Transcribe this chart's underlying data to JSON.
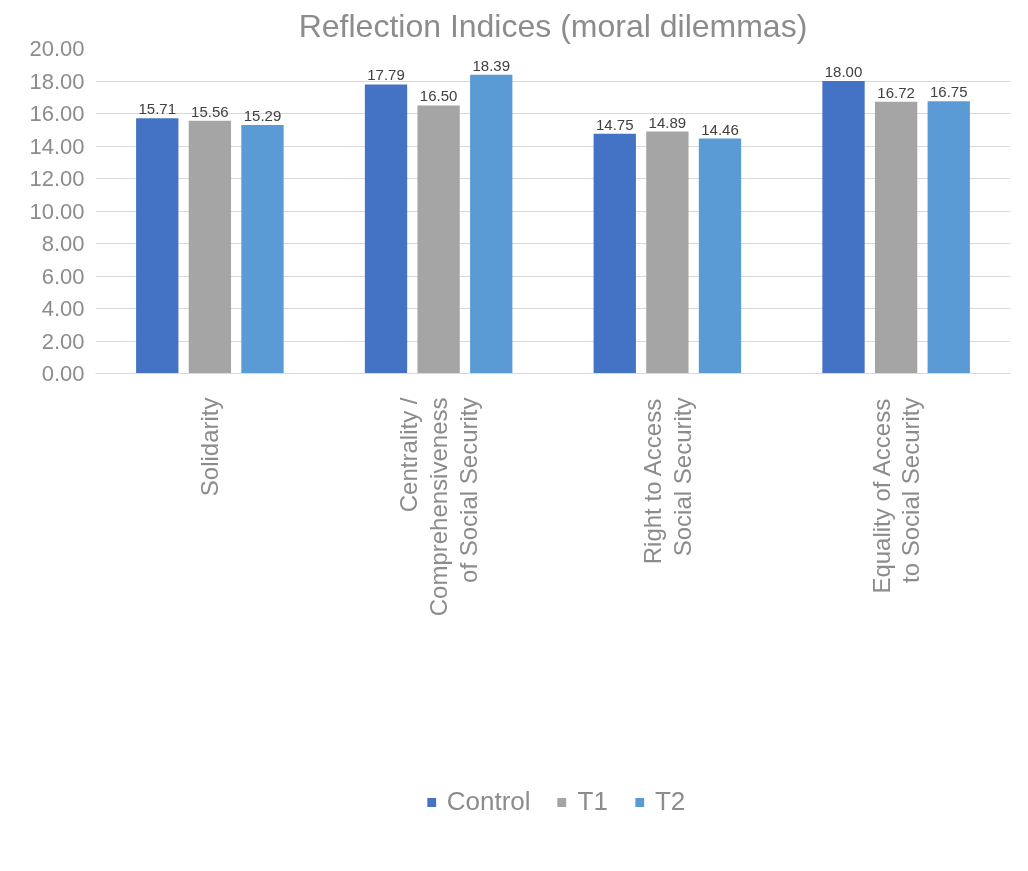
{
  "chart_data": {
    "type": "bar",
    "title": "Reflection Indices (moral dilemmas)",
    "categories": [
      "Solidarity",
      "Centrality /\nComprehensiveness\nof Social Security",
      "Right to Access\nSocial Security",
      "Equality of Access\nto Social Security"
    ],
    "series": [
      {
        "name": "Control",
        "color": "#4472c4",
        "values": [
          15.71,
          17.79,
          14.75,
          18.0
        ],
        "value_labels": [
          "15.71",
          "17.79",
          "14.75",
          "18.00"
        ]
      },
      {
        "name": "T1",
        "color": "#a5a5a5",
        "values": [
          15.56,
          16.5,
          14.89,
          16.72
        ],
        "value_labels": [
          "15.56",
          "16.50",
          "14.89",
          "16.72"
        ]
      },
      {
        "name": "T2",
        "color": "#5b9bd5",
        "values": [
          15.29,
          18.39,
          14.46,
          16.75
        ],
        "value_labels": [
          "15.29",
          "18.39",
          "14.46",
          "16.75"
        ]
      }
    ],
    "ylim": [
      0,
      20
    ],
    "yticks": [
      {
        "value": 0,
        "label": "0.00"
      },
      {
        "value": 2,
        "label": "2.00"
      },
      {
        "value": 4,
        "label": "4.00"
      },
      {
        "value": 6,
        "label": "6.00"
      },
      {
        "value": 8,
        "label": "8.00"
      },
      {
        "value": 10,
        "label": "10.00"
      },
      {
        "value": 12,
        "label": "12.00"
      },
      {
        "value": 14,
        "label": "14.00"
      },
      {
        "value": 16,
        "label": "16.00"
      },
      {
        "value": 18,
        "label": "18.00"
      },
      {
        "value": 20,
        "label": "20.00"
      }
    ],
    "grid": "y",
    "legend": "bottom"
  }
}
